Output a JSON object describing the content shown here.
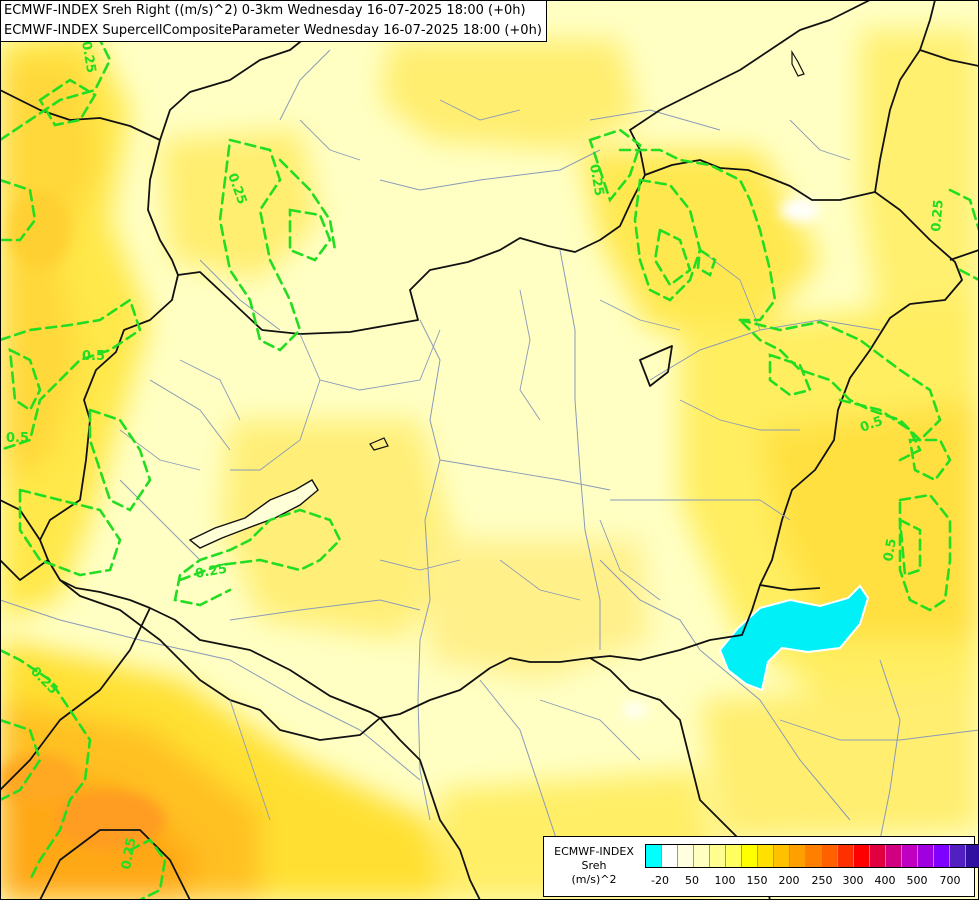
{
  "title": {
    "line1": "ECMWF-INDEX Sreh Right ((m/s)^2) 0-3km Wednesday 16-07-2025 18:00 (+0h)",
    "line2": "ECMWF-INDEX SupercellCompositeParameter Wednesday 16-07-2025 18:00 (+0h)"
  },
  "contour_labels": [
    "0.25",
    "0.5"
  ],
  "contour_color": "#22dd22",
  "legend": {
    "title_lines": [
      "ECMWF-INDEX",
      "Sreh",
      "(m/s)^2"
    ],
    "labels": [
      "-20",
      "50",
      "100",
      "150",
      "200",
      "250",
      "300",
      "400",
      "500",
      "700"
    ],
    "colors": [
      "#00ffff",
      "#ffffff",
      "#ffffe0",
      "#ffffc0",
      "#ffff90",
      "#ffff60",
      "#ffff00",
      "#ffe000",
      "#ffc000",
      "#ffa000",
      "#ff8000",
      "#ff6000",
      "#ff3000",
      "#ff0000",
      "#e00040",
      "#d00080",
      "#c000c0",
      "#a000e0",
      "#8000ff",
      "#5020c0",
      "#3010a0",
      "#000080"
    ]
  }
}
